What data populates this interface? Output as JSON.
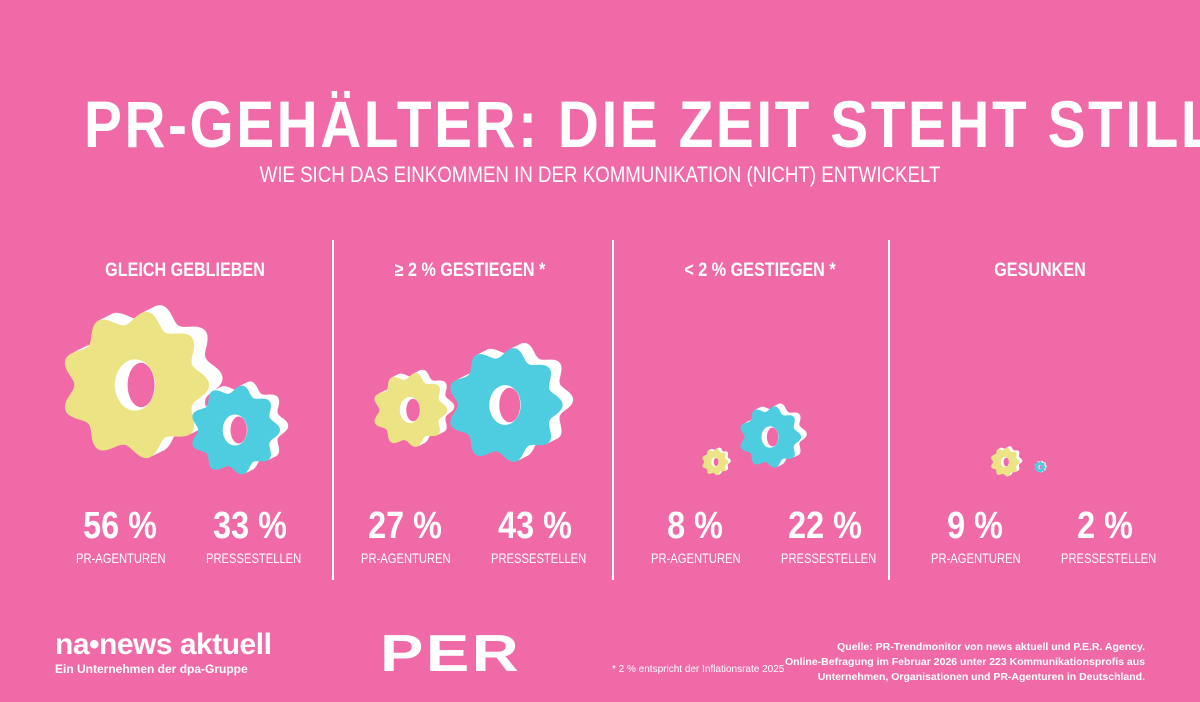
{
  "title": "PR-GEHÄLTER: DIE ZEIT STEHT STILL",
  "subtitle": "WIE SICH DAS EINKOMMEN IN DER KOMMUNIKATION (NICHT) ENTWICKELT",
  "chart_data": {
    "type": "bar",
    "title": "PR-GEHÄLTER: DIE ZEIT STEHT STILL",
    "categories": [
      "GLEICH GEBLIEBEN",
      "≥ 2 % GESTIEGEN *",
      "< 2 % GESTIEGEN *",
      "GESUNKEN"
    ],
    "series": [
      {
        "name": "PR-AGENTUREN",
        "values": [
          56,
          27,
          8,
          9
        ],
        "labels": [
          "56 %",
          "27 %",
          "8 %",
          "9 %"
        ],
        "color": "#ece484"
      },
      {
        "name": "PRESSESTELLEN",
        "values": [
          33,
          43,
          22,
          2
        ],
        "labels": [
          "33 %",
          "43 %",
          "22 %",
          "2 %"
        ],
        "color": "#4ecde0"
      }
    ],
    "unit": "%"
  },
  "colors": {
    "background": "#f06aa8",
    "shadow": "#ffffff"
  },
  "footer": {
    "logo_na": "na•news aktuell",
    "logo_na_sub": "Ein Unternehmen der dpa-Gruppe",
    "logo_per": "PER",
    "footnote": "* 2 % entspricht der Inflationsrate 2025",
    "source": [
      "Quelle: PR-Trendmonitor von news aktuell und P.E.R. Agency.",
      "Online-Befragung im Februar 2026 unter 223 Kommunikationsprofis aus",
      "Unternehmen, Organisationen und PR-Agenturen in Deutschland."
    ]
  }
}
